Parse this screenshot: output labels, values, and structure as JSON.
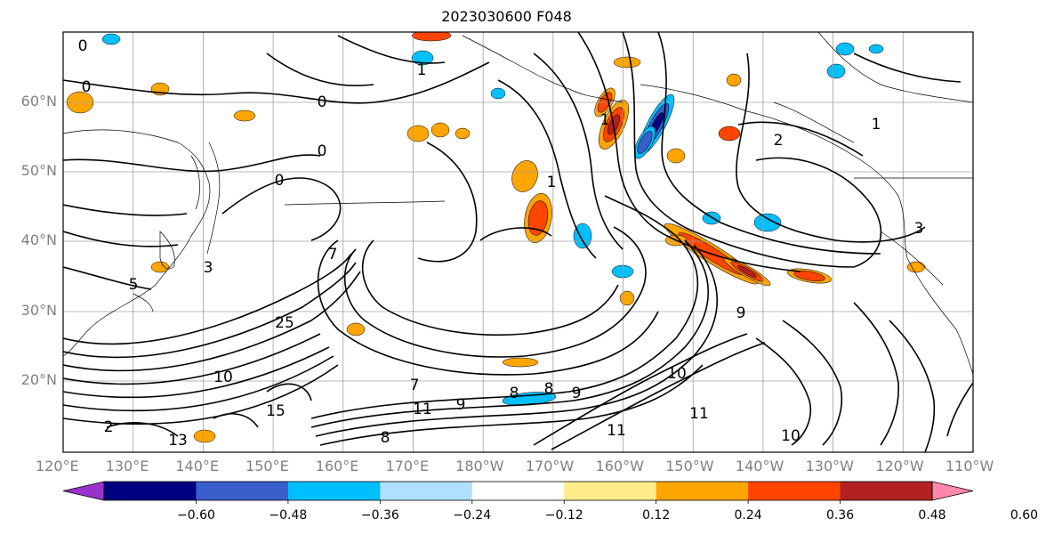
{
  "title": "2023030600 F048",
  "map": {
    "lat_labels": [
      "60°N",
      "50°N",
      "40°N",
      "30°N",
      "20°N"
    ],
    "lon_labels": [
      "120°E",
      "130°E",
      "140°E",
      "150°E",
      "160°E",
      "170°E",
      "180°W",
      "170°W",
      "160°W",
      "150°W",
      "140°W",
      "130°W",
      "120°W",
      "110°W"
    ],
    "label_color": "#808080"
  },
  "colorbar": {
    "tick_labels": [
      "−0.60",
      "−0.48",
      "−0.36",
      "−0.24",
      "−0.12",
      "0.12",
      "0.24",
      "0.36",
      "0.48",
      "0.60"
    ],
    "colors": [
      "#9932cc",
      "#000080",
      "#3a5fcd",
      "#00bfff",
      "#b0e0ff",
      "#ffffff",
      "#ffec8b",
      "#ffa500",
      "#ff4500",
      "#b22222",
      "#ff88aa"
    ]
  },
  "contour_labels": [
    "0",
    "0",
    "0",
    "0",
    "0",
    "1",
    "1",
    "1",
    "1",
    "2",
    "2",
    "3",
    "3",
    "5",
    "7",
    "7",
    "8",
    "8",
    "8",
    "9",
    "9",
    "9",
    "10",
    "10",
    "10",
    "11",
    "11",
    "11",
    "13",
    "15",
    "25"
  ]
}
